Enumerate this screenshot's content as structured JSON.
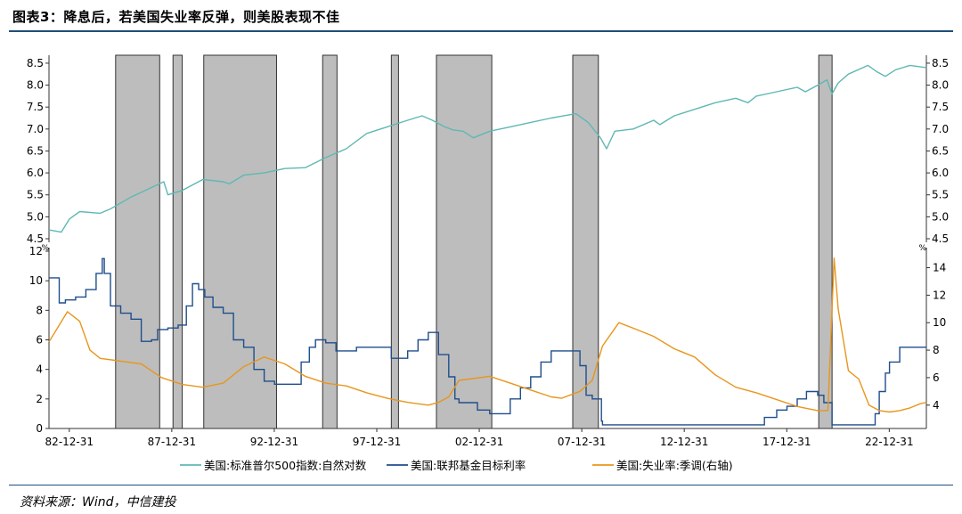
{
  "header": {
    "title": "图表3：降息后，若美国失业率反弹，则美股表现不佳"
  },
  "footer": {
    "source": "资料来源：Wind，中信建投"
  },
  "chart_data": [
    {
      "type": "line",
      "panel": "top",
      "xlim": [
        1982.0,
        2024.8
      ],
      "ylim": [
        4.5,
        8.6
      ],
      "yticks": [
        "4.5",
        "5.0",
        "5.5",
        "6.0",
        "6.5",
        "7.0",
        "7.5",
        "8.0",
        "8.5"
      ],
      "ytick_values": [
        4.5,
        5.0,
        5.5,
        6.0,
        6.5,
        7.0,
        7.5,
        8.0,
        8.5
      ],
      "series": [
        {
          "name": "美国:标准普尔500指数:自然对数",
          "color": "#5fb8b4",
          "x": [
            1982.0,
            1982.6,
            1983.0,
            1983.5,
            1984.5,
            1985.0,
            1986.0,
            1987.6,
            1987.8,
            1988.5,
            1989.5,
            1990.5,
            1990.8,
            1991.5,
            1992.5,
            1993.5,
            1994.5,
            1995.5,
            1996.5,
            1997.5,
            1998.5,
            1999.5,
            2000.2,
            2000.7,
            2001.3,
            2001.7,
            2002.2,
            2002.7,
            2003.5,
            2004.5,
            2005.5,
            2006.5,
            2007.7,
            2008.3,
            2008.9,
            2009.2,
            2009.6,
            2010.5,
            2011.5,
            2011.8,
            2012.5,
            2013.5,
            2014.5,
            2015.5,
            2016.1,
            2016.5,
            2017.5,
            2018.5,
            2018.9,
            2019.5,
            2019.95,
            2020.2,
            2020.5,
            2021.0,
            2021.95,
            2022.4,
            2022.8,
            2023.3,
            2024.0,
            2024.8
          ],
          "y": [
            4.7,
            4.65,
            4.95,
            5.12,
            5.08,
            5.18,
            5.45,
            5.8,
            5.5,
            5.6,
            5.85,
            5.8,
            5.75,
            5.95,
            6.0,
            6.1,
            6.12,
            6.35,
            6.55,
            6.9,
            7.05,
            7.2,
            7.3,
            7.2,
            7.05,
            6.98,
            6.95,
            6.8,
            6.95,
            7.05,
            7.15,
            7.25,
            7.35,
            7.15,
            6.8,
            6.55,
            6.95,
            7.0,
            7.2,
            7.1,
            7.3,
            7.45,
            7.6,
            7.7,
            7.6,
            7.75,
            7.85,
            7.95,
            7.85,
            8.0,
            8.12,
            7.8,
            8.05,
            8.25,
            8.45,
            8.3,
            8.2,
            8.35,
            8.45,
            8.4
          ]
        }
      ]
    },
    {
      "type": "line",
      "panel": "bottom",
      "xlim": [
        1982.0,
        2024.8
      ],
      "xticks": [
        "82-12-31",
        "87-12-31",
        "92-12-31",
        "97-12-31",
        "02-12-31",
        "07-12-31",
        "12-12-31",
        "17-12-31",
        "22-12-31"
      ],
      "xtick_values": [
        1982.99,
        1987.99,
        1992.99,
        1997.99,
        2002.99,
        2007.99,
        2012.99,
        2017.99,
        2022.99
      ],
      "left_axis": {
        "unit": "%",
        "ylim": [
          0,
          12
        ],
        "yticks": [
          "0",
          "2",
          "4",
          "6",
          "8",
          "10",
          "12"
        ],
        "ytick_values": [
          0,
          2,
          4,
          6,
          8,
          10,
          12
        ]
      },
      "right_axis": {
        "unit": "%",
        "ylim": [
          2.3,
          15.2
        ],
        "yticks": [
          "4",
          "6",
          "8",
          "10",
          "12",
          "14"
        ],
        "ytick_values": [
          4,
          6,
          8,
          10,
          12,
          14
        ]
      },
      "series": [
        {
          "name": "美国:联邦基金目标利率",
          "axis": "left",
          "color": "#1f4e8c",
          "x": [
            1982.0,
            1982.5,
            1982.8,
            1983.3,
            1983.8,
            1984.0,
            1984.3,
            1984.6,
            1984.7,
            1985.0,
            1985.5,
            1986.0,
            1986.5,
            1987.0,
            1987.3,
            1987.8,
            1988.3,
            1988.7,
            1989.0,
            1989.3,
            1989.6,
            1990.0,
            1990.5,
            1991.0,
            1991.5,
            1992.0,
            1992.5,
            1993.0,
            1994.0,
            1994.3,
            1994.7,
            1995.0,
            1995.5,
            1996.0,
            1997.0,
            1998.0,
            1998.7,
            1999.0,
            1999.5,
            2000.0,
            2000.5,
            2001.0,
            2001.5,
            2001.8,
            2002.0,
            2002.9,
            2003.5,
            2004.5,
            2005.0,
            2005.5,
            2006.0,
            2006.5,
            2007.6,
            2007.9,
            2008.2,
            2008.5,
            2008.95,
            2009.0,
            2015.9,
            2016.9,
            2017.5,
            2018.0,
            2018.5,
            2018.95,
            2019.5,
            2019.8,
            2020.2,
            2022.0,
            2022.3,
            2022.5,
            2022.8,
            2023.0,
            2023.5,
            2024.8
          ],
          "y": [
            10.2,
            8.5,
            8.7,
            8.9,
            9.4,
            9.4,
            10.5,
            11.5,
            10.5,
            8.3,
            7.8,
            7.4,
            5.9,
            6.0,
            6.7,
            6.8,
            7.0,
            8.3,
            9.8,
            9.4,
            8.9,
            8.2,
            7.8,
            6.0,
            5.5,
            4.0,
            3.2,
            3.0,
            3.0,
            4.5,
            5.5,
            6.0,
            5.8,
            5.25,
            5.5,
            5.5,
            4.75,
            4.75,
            5.25,
            6.0,
            6.5,
            5.0,
            3.5,
            2.0,
            1.75,
            1.25,
            1.0,
            2.0,
            2.75,
            3.5,
            4.5,
            5.25,
            5.25,
            4.25,
            2.25,
            2.0,
            0.5,
            0.25,
            0.25,
            0.75,
            1.25,
            1.5,
            2.0,
            2.5,
            2.25,
            1.75,
            0.25,
            0.25,
            1.0,
            2.5,
            3.75,
            4.5,
            5.5,
            5.5
          ]
        },
        {
          "name": "美国:失业率:季调(右轴)",
          "axis": "right",
          "color": "#e8961c",
          "x": [
            1982.0,
            1982.9,
            1983.5,
            1984.0,
            1984.5,
            1985.5,
            1986.5,
            1987.5,
            1988.5,
            1989.5,
            1990.5,
            1991.5,
            1992.5,
            1993.5,
            1994.5,
            1995.5,
            1996.5,
            1997.5,
            1998.5,
            1999.5,
            2000.5,
            2001.0,
            2001.5,
            2002.0,
            2003.5,
            2004.5,
            2005.5,
            2006.5,
            2007.0,
            2007.9,
            2008.5,
            2009.0,
            2009.8,
            2010.5,
            2011.5,
            2012.5,
            2013.5,
            2014.5,
            2015.5,
            2016.5,
            2017.5,
            2018.5,
            2019.5,
            2020.0,
            2020.3,
            2020.5,
            2021.0,
            2021.5,
            2022.0,
            2022.5,
            2023.0,
            2023.5,
            2024.0,
            2024.5,
            2024.8
          ],
          "y": [
            8.6,
            10.8,
            10.1,
            8.0,
            7.4,
            7.2,
            7.0,
            6.0,
            5.5,
            5.3,
            5.6,
            6.8,
            7.5,
            7.0,
            6.1,
            5.6,
            5.4,
            4.9,
            4.5,
            4.2,
            4.0,
            4.2,
            4.6,
            5.8,
            6.1,
            5.6,
            5.1,
            4.6,
            4.5,
            5.0,
            5.8,
            8.3,
            10.0,
            9.6,
            9.0,
            8.1,
            7.5,
            6.2,
            5.3,
            4.9,
            4.4,
            3.9,
            3.6,
            3.6,
            14.7,
            11.0,
            6.5,
            5.9,
            4.0,
            3.6,
            3.5,
            3.6,
            3.8,
            4.1,
            4.2
          ]
        }
      ]
    }
  ],
  "shaded_periods": [
    [
      1985.25,
      1987.4
    ],
    [
      1988.05,
      1988.5
    ],
    [
      1989.55,
      1993.1
    ],
    [
      1995.35,
      1996.05
    ],
    [
      1998.7,
      1999.05
    ],
    [
      2000.9,
      2003.6
    ],
    [
      2007.55,
      2008.8
    ],
    [
      2019.55,
      2020.2
    ]
  ],
  "legend": {
    "placement": "bottom",
    "items": [
      {
        "label": "美国:标准普尔500指数:自然对数",
        "color": "#5fb8b4"
      },
      {
        "label": "美国:联邦基金目标利率",
        "color": "#1f4e8c"
      },
      {
        "label": "美国:失业率:季调(右轴)",
        "color": "#e8961c"
      }
    ]
  }
}
